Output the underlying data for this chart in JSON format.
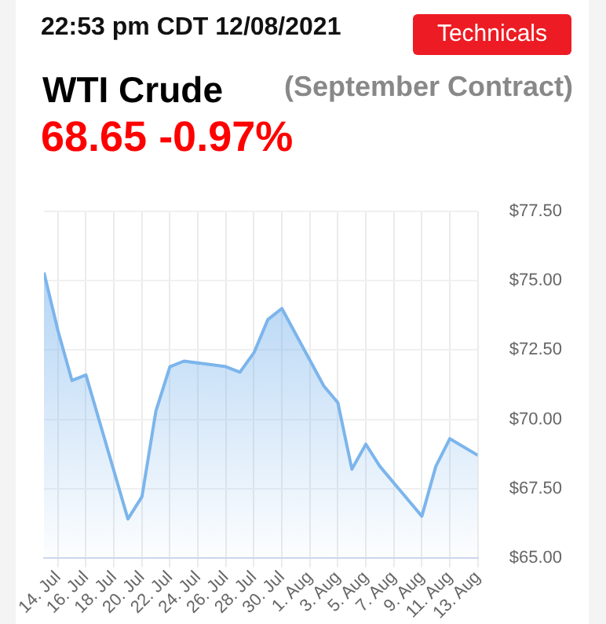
{
  "chart_data": {
    "type": "area",
    "title": "WTI Crude",
    "subtitle": "(September Contract)",
    "annotations": [
      "22:53 pm CDT 12/08/2021",
      "Technicals",
      "68.65 -0.97%"
    ],
    "x": [
      "2021-07-13",
      "2021-07-14",
      "2021-07-15",
      "2021-07-16",
      "2021-07-19",
      "2021-07-20",
      "2021-07-21",
      "2021-07-22",
      "2021-07-23",
      "2021-07-26",
      "2021-07-27",
      "2021-07-28",
      "2021-07-29",
      "2021-07-30",
      "2021-08-02",
      "2021-08-03",
      "2021-08-04",
      "2021-08-05",
      "2021-08-06",
      "2021-08-09",
      "2021-08-10",
      "2021-08-11",
      "2021-08-13"
    ],
    "series": [
      {
        "color": "#7cb5ec",
        "values": [
          75.3,
          73.2,
          71.4,
          71.6,
          66.4,
          67.2,
          70.3,
          71.9,
          72.1,
          71.9,
          71.7,
          72.4,
          73.6,
          74.0,
          71.2,
          70.6,
          68.2,
          69.1,
          68.3,
          66.5,
          68.3,
          69.3,
          68.7
        ]
      }
    ],
    "xlim": [
      "2021-07-13",
      "2021-08-13"
    ],
    "xticks": [
      {
        "value": "2021-07-14",
        "label": "14. Jul"
      },
      {
        "value": "2021-07-16",
        "label": "16. Jul"
      },
      {
        "value": "2021-07-18",
        "label": "18. Jul"
      },
      {
        "value": "2021-07-20",
        "label": "20. Jul"
      },
      {
        "value": "2021-07-22",
        "label": "22. Jul"
      },
      {
        "value": "2021-07-24",
        "label": "24. Jul"
      },
      {
        "value": "2021-07-26",
        "label": "26. Jul"
      },
      {
        "value": "2021-07-28",
        "label": "28. Jul"
      },
      {
        "value": "2021-07-30",
        "label": "30. Jul"
      },
      {
        "value": "2021-08-01",
        "label": "1. Aug"
      },
      {
        "value": "2021-08-03",
        "label": "3. Aug"
      },
      {
        "value": "2021-08-05",
        "label": "5. Aug"
      },
      {
        "value": "2021-08-07",
        "label": "7. Aug"
      },
      {
        "value": "2021-08-09",
        "label": "9. Aug"
      },
      {
        "value": "2021-08-11",
        "label": "11. Aug"
      },
      {
        "value": "2021-08-13",
        "label": "13. Aug"
      }
    ],
    "ylim": [
      65,
      77.5
    ],
    "yticks": [
      {
        "value": 65,
        "label": "$65.00"
      },
      {
        "value": 67.5,
        "label": "$67.50"
      },
      {
        "value": 70,
        "label": "$70.00"
      },
      {
        "value": 72.5,
        "label": "$72.50"
      },
      {
        "value": 75,
        "label": "$75.00"
      },
      {
        "value": 77.5,
        "label": "$77.50"
      }
    ],
    "grid": true,
    "legend": false,
    "marker": "none",
    "line_style": "solid"
  }
}
